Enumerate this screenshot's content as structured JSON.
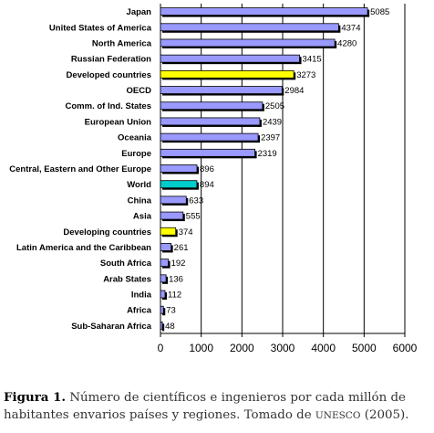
{
  "chart_data": {
    "type": "bar",
    "orientation": "horizontal",
    "categories": [
      "Japan",
      "United States of America",
      "North America",
      "Russian Federation",
      "Developed countries",
      "OECD",
      "Comm. of Ind. States",
      "European Union",
      "Oceania",
      "Europe",
      "Central, Eastern and Other Europe",
      "World",
      "China",
      "Asia",
      "Developing countries",
      "Latin America and the Caribbean",
      "South Africa",
      "Arab States",
      "India",
      "Africa",
      "Sub-Saharan Africa"
    ],
    "values": [
      5085,
      4374,
      4280,
      3415,
      3273,
      2984,
      2505,
      2439,
      2397,
      2319,
      896,
      894,
      633,
      555,
      374,
      261,
      192,
      136,
      112,
      73,
      48
    ],
    "value_labels": [
      "5085",
      "4374",
      "4280",
      "3415",
      "3273",
      "2984",
      "2505",
      "2439",
      "2397",
      "2319",
      "896",
      "894",
      "633",
      "555",
      "374",
      "261",
      "192",
      "136",
      "112",
      "73",
      "48"
    ],
    "highlight": {
      "Developed countries": "#ffff00",
      "Developing countries": "#ffff00",
      "World": "#00cccc"
    },
    "xlim": [
      0,
      6000
    ],
    "xticks": [
      "0",
      "1000",
      "2000",
      "3000",
      "4000",
      "5000",
      "6000"
    ],
    "grid": "vertical",
    "colors": {
      "bar": "#9999ff",
      "shadow": "#000000",
      "grid": "#000000"
    }
  },
  "caption": {
    "label": "Figura 1.",
    "text_part1": "Número de científicos e ingenieros por cada millón de habitantes envarios países y regiones. Tomado de",
    "source": "UNESCO",
    "text_part2": "(2005)."
  }
}
